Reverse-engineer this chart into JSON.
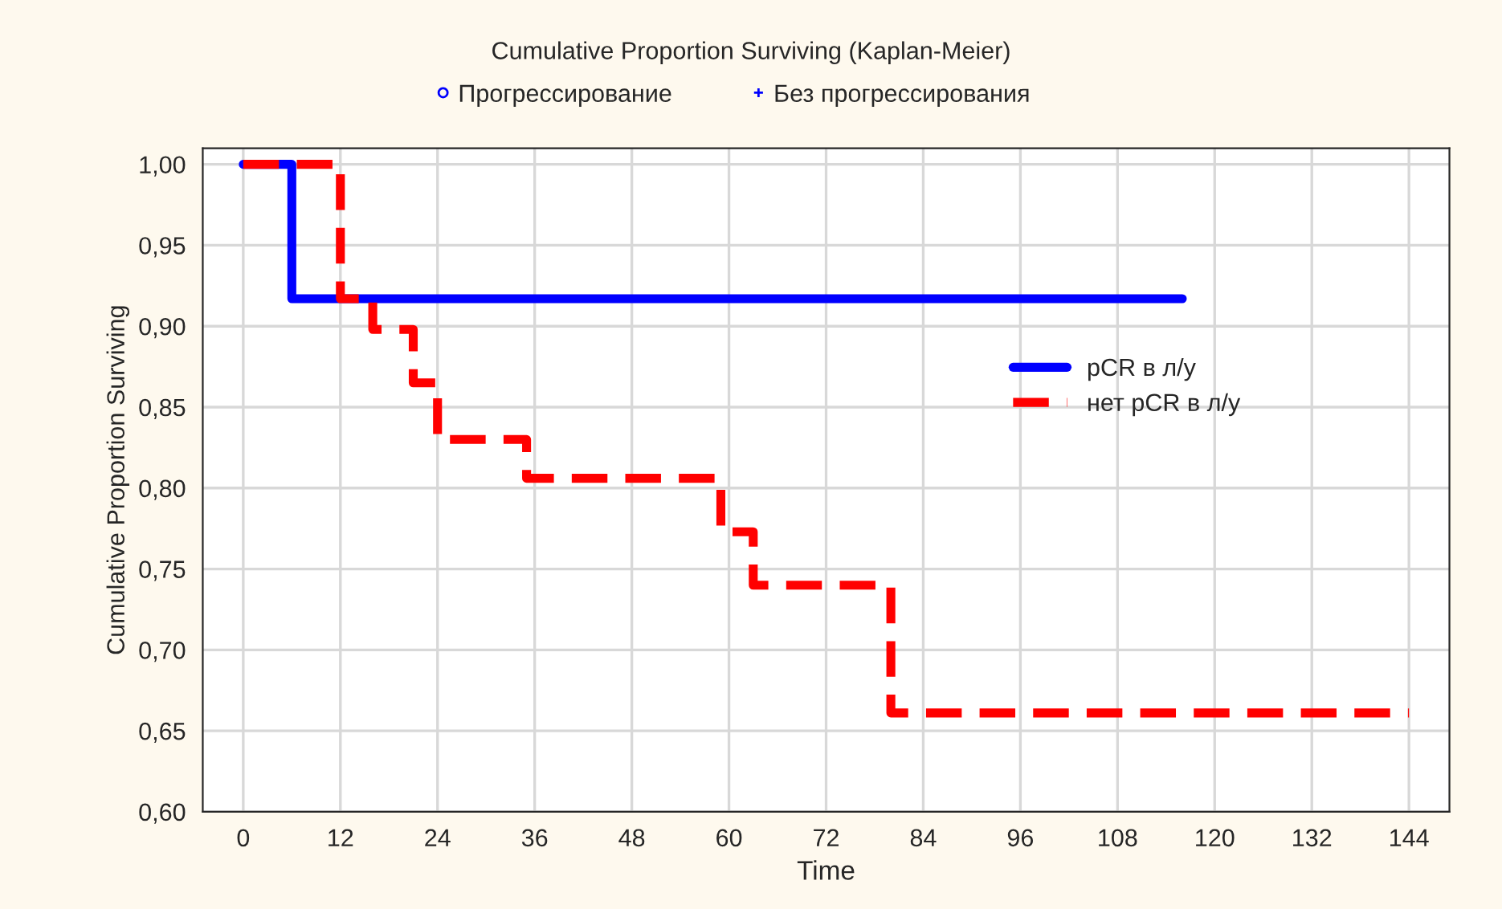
{
  "chart_data": {
    "type": "step",
    "title": "Cumulative Proportion Surviving (Kaplan-Meier)",
    "annotations": [
      "Прогрессирование",
      "Без прогрессирования"
    ],
    "xlabel": "Time",
    "ylabel": "Cumulative Proportion Surviving",
    "series": [
      {
        "name": "pCR в л/у",
        "color": "#0000ff",
        "line_style": "solid",
        "x": [
          0,
          6,
          116
        ],
        "values": [
          1.0,
          0.917,
          0.917
        ]
      },
      {
        "name": "нет pCR в л/у",
        "color": "#ff0000",
        "line_style": "dashed",
        "x": [
          0,
          12,
          16,
          21,
          24,
          35,
          59,
          63,
          80,
          144
        ],
        "values": [
          1.0,
          0.917,
          0.898,
          0.865,
          0.83,
          0.806,
          0.773,
          0.74,
          0.661,
          0.661
        ]
      }
    ],
    "xlim": [
      -5,
      149
    ],
    "xticks": [
      0,
      12,
      24,
      36,
      48,
      60,
      72,
      84,
      96,
      108,
      120,
      132,
      144
    ],
    "ylim": [
      0.6,
      1.01
    ],
    "yticks": [
      {
        "value": 0.6,
        "label": "0,60"
      },
      {
        "value": 0.65,
        "label": "0,65"
      },
      {
        "value": 0.7,
        "label": "0,70"
      },
      {
        "value": 0.75,
        "label": "0,75"
      },
      {
        "value": 0.8,
        "label": "0,80"
      },
      {
        "value": 0.85,
        "label": "0,85"
      },
      {
        "value": 0.9,
        "label": "0,90"
      },
      {
        "value": 0.95,
        "label": "0,95"
      },
      {
        "value": 1.0,
        "label": "1,00"
      }
    ],
    "grid": true,
    "legend": "right"
  }
}
